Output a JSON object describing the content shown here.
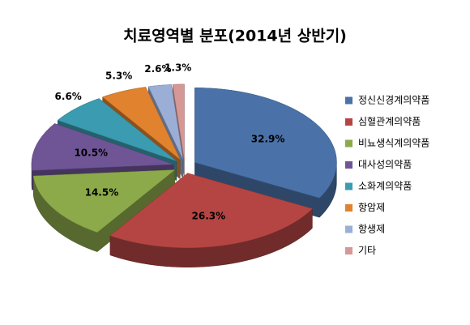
{
  "chart_data": {
    "type": "pie3d",
    "title": "치료영역별 분포(2014년 상반기)",
    "categories": [
      "정신신경계의약품",
      "심혈관계의약품",
      "비뇨생식계의약품",
      "대사성의약품",
      "소화계의약품",
      "항암제",
      "항생제",
      "기타"
    ],
    "values": [
      32.9,
      26.3,
      14.5,
      10.5,
      6.6,
      5.3,
      2.6,
      1.3
    ],
    "value_labels": [
      "32.9%",
      "26.3%",
      "14.5%",
      "10.5%",
      "6.6%",
      "5.3%",
      "2.6%",
      "1.3%"
    ],
    "colors": [
      "#4a72a8",
      "#b54543",
      "#8caa4a",
      "#6f5596",
      "#3b9bb0",
      "#e0822e",
      "#9aaed6",
      "#d59896"
    ],
    "legend": "right"
  }
}
